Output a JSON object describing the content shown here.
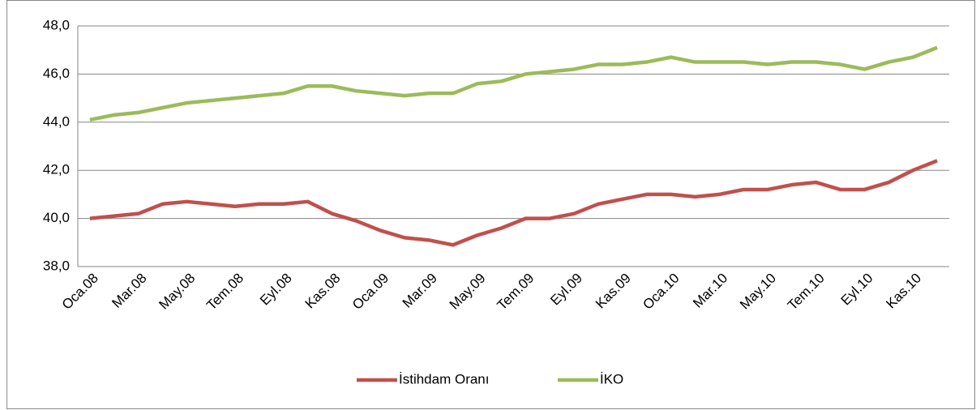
{
  "chart_data": {
    "type": "line",
    "categories": [
      "Oca.08",
      null,
      "Mar.08",
      null,
      "May.08",
      null,
      "Tem.08",
      null,
      "Eyl.08",
      null,
      "Kas.08",
      null,
      "Oca.09",
      null,
      "Mar.09",
      null,
      "May.09",
      null,
      "Tem.09",
      null,
      "Eyl.09",
      null,
      "Kas.09",
      null,
      "Oca.10",
      null,
      "Mar.10",
      null,
      "May.10",
      null,
      "Tem.10",
      null,
      "Eyl.10",
      null,
      "Kas.10",
      null
    ],
    "series": [
      {
        "name": "İstihdam Oranı",
        "color": "#c0504d",
        "values": [
          40.0,
          40.1,
          40.2,
          40.6,
          40.7,
          40.6,
          40.5,
          40.6,
          40.6,
          40.7,
          40.2,
          39.9,
          39.5,
          39.2,
          39.1,
          38.9,
          39.3,
          39.6,
          40.0,
          40.0,
          40.2,
          40.6,
          40.8,
          41.0,
          41.0,
          40.9,
          41.0,
          41.2,
          41.2,
          41.4,
          41.5,
          41.2,
          41.2,
          41.5,
          42.0,
          42.4
        ]
      },
      {
        "name": "İKO",
        "color": "#9bbb59",
        "values": [
          44.1,
          44.3,
          44.4,
          44.6,
          44.8,
          44.9,
          45.0,
          45.1,
          45.2,
          45.5,
          45.5,
          45.3,
          45.2,
          45.1,
          45.2,
          45.2,
          45.6,
          45.7,
          46.0,
          46.1,
          46.2,
          46.4,
          46.4,
          46.5,
          46.7,
          46.5,
          46.5,
          46.5,
          46.4,
          46.5,
          46.5,
          46.4,
          46.2,
          46.5,
          46.7,
          47.1
        ]
      }
    ],
    "ylim": [
      38,
      48
    ],
    "yticks": [
      {
        "value": 38,
        "label": "38,0"
      },
      {
        "value": 40,
        "label": "40,0"
      },
      {
        "value": 42,
        "label": "42,0"
      },
      {
        "value": 44,
        "label": "44,0"
      },
      {
        "value": 46,
        "label": "46,0"
      },
      {
        "value": 48,
        "label": "48,0"
      }
    ],
    "grid": true,
    "legend": "bottom"
  }
}
